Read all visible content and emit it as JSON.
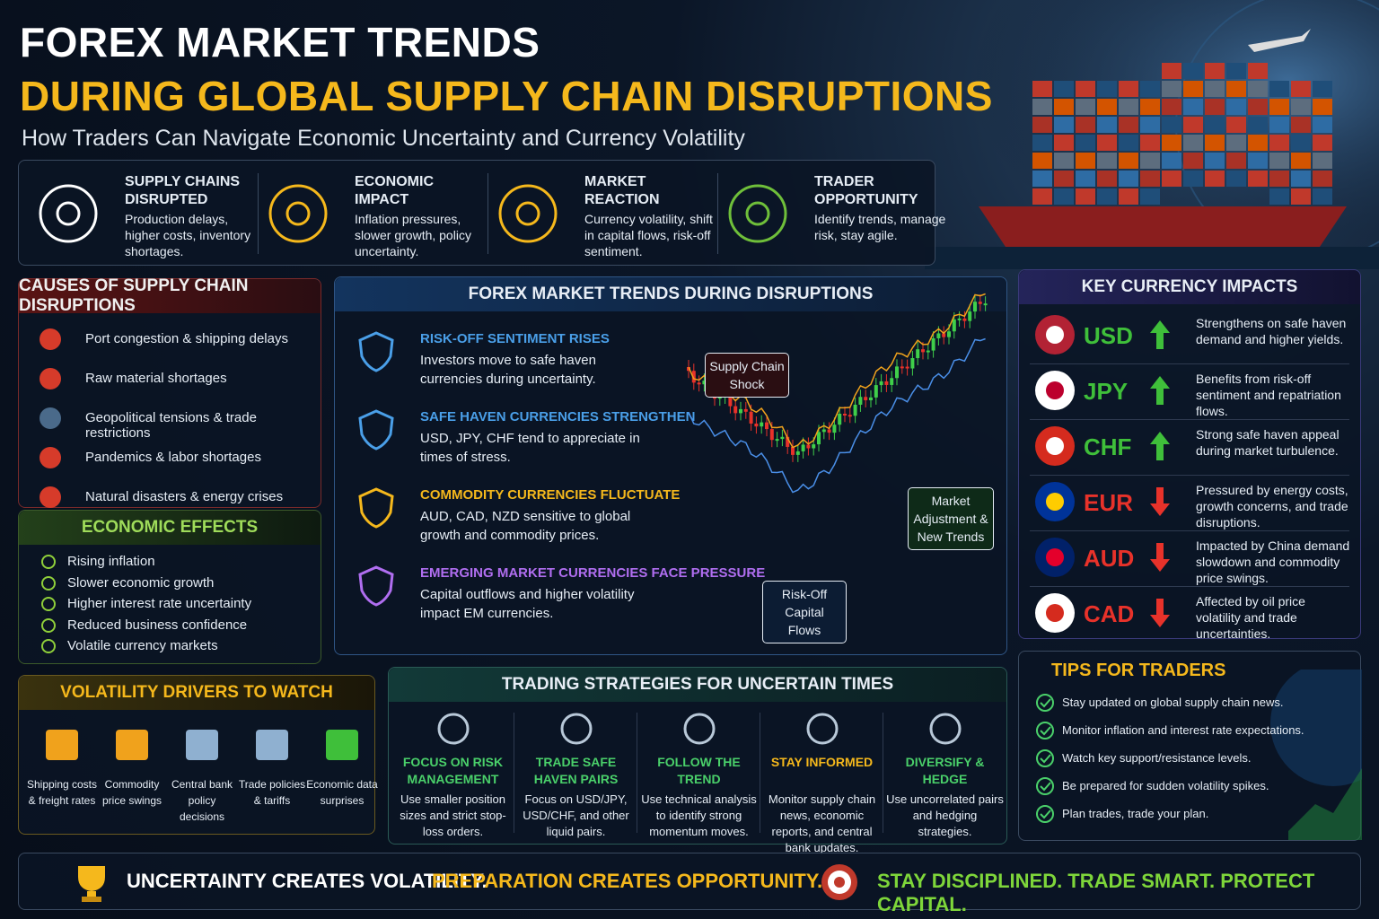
{
  "header": {
    "title": "FOREX MARKET TRENDS",
    "highlight": "DURING GLOBAL SUPPLY CHAIN DISRUPTIONS",
    "subtitle": "How Traders Can Navigate Economic Uncertainty and Currency Volatility"
  },
  "overview": [
    {
      "title": "SUPPLY CHAINS DISRUPTED",
      "text": "Production delays, higher costs, inventory shortages."
    },
    {
      "title": "ECONOMIC IMPACT",
      "text": "Inflation pressures, slower growth, policy uncertainty."
    },
    {
      "title": "MARKET REACTION",
      "text": "Currency volatility, shift in capital flows, risk-off sentiment."
    },
    {
      "title": "TRADER OPPORTUNITY",
      "text": "Identify trends, manage risk, stay agile."
    }
  ],
  "causes": {
    "title": "CAUSES OF SUPPLY CHAIN DISRUPTIONS",
    "items": [
      "Port congestion & shipping delays",
      "Raw material shortages",
      "Geopolitical tensions & trade restrictions",
      "Pandemics & labor shortages",
      "Natural disasters & energy crises"
    ]
  },
  "effects": {
    "title": "ECONOMIC EFFECTS",
    "items": [
      "Rising inflation",
      "Slower economic growth",
      "Higher interest rate uncertainty",
      "Reduced business confidence",
      "Volatile currency markets"
    ]
  },
  "trends": {
    "title": "FOREX MARKET TRENDS DURING DISRUPTIONS",
    "items": [
      {
        "title": "RISK-OFF SENTIMENT RISES",
        "text": "Investors move to safe haven currencies during uncertainty."
      },
      {
        "title": "SAFE HAVEN CURRENCIES STRENGTHEN",
        "text": "USD, JPY, CHF tend to appreciate in times of stress."
      },
      {
        "title": "COMMODITY CURRENCIES FLUCTUATE",
        "text": "AUD, CAD, NZD sensitive to global growth and commodity prices."
      },
      {
        "title": "EMERGING MARKET CURRENCIES FACE PRESSURE",
        "text": "Capital outflows and higher volatility impact EM currencies."
      }
    ],
    "callouts": [
      "Supply Chain Shock",
      "Market Adjustment & New Trends",
      "Risk-Off Capital Flows"
    ]
  },
  "currencies": {
    "title": "KEY CURRENCY IMPACTS",
    "rows": [
      {
        "code": "USD",
        "text": "Strengthens on safe haven demand and higher yields."
      },
      {
        "code": "JPY",
        "text": "Benefits from risk-off sentiment and repatriation flows."
      },
      {
        "code": "CHF",
        "text": "Strong safe haven appeal during market turbulence."
      },
      {
        "code": "EUR",
        "text": "Pressured by energy costs, growth concerns, and trade disruptions."
      },
      {
        "code": "AUD",
        "text": "Impacted by China demand slowdown and commodity price swings."
      },
      {
        "code": "CAD",
        "text": "Affected by oil price volatility and trade uncertainties."
      }
    ]
  },
  "volatility": {
    "title": "VOLATILITY DRIVERS TO WATCH",
    "items": [
      "Shipping costs & freight rates",
      "Commodity price swings",
      "Central bank policy decisions",
      "Trade policies & tariffs",
      "Economic data surprises"
    ]
  },
  "strategies": {
    "title": "TRADING STRATEGIES FOR UNCERTAIN TIMES",
    "items": [
      {
        "title": "FOCUS ON RISK MANAGEMENT",
        "text": "Use smaller position sizes and strict stop-loss orders."
      },
      {
        "title": "TRADE SAFE HAVEN PAIRS",
        "text": "Focus on USD/JPY, USD/CHF, and other liquid pairs."
      },
      {
        "title": "FOLLOW THE TREND",
        "text": "Use technical analysis to identify strong momentum moves."
      },
      {
        "title": "STAY INFORMED",
        "text": "Monitor supply chain news, economic reports, and central bank updates."
      },
      {
        "title": "DIVERSIFY & HEDGE",
        "text": "Use uncorrelated pairs and hedging strategies."
      }
    ]
  },
  "tips": {
    "title": "TIPS FOR TRADERS",
    "items": [
      "Stay updated on global supply chain news.",
      "Monitor inflation and interest rate expectations.",
      "Watch key support/resistance levels.",
      "Be prepared for sudden volatility spikes.",
      "Plan trades, trade your plan."
    ]
  },
  "footer": [
    "UNCERTAINTY CREATES VOLATILITY.",
    "PREPARATION CREATES OPPORTUNITY.",
    "STAY DISCIPLINED. TRADE SMART. PROTECT CAPITAL."
  ]
}
